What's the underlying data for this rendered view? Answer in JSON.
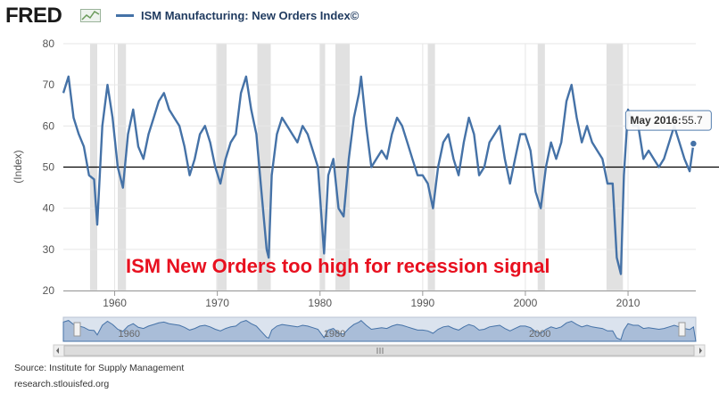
{
  "header": {
    "logo": "FRED",
    "logo_icon": "fred-chart-icon",
    "legend_label": "ISM Manufacturing: New Orders Index©",
    "legend_color": "#4572A7"
  },
  "chart_data": {
    "type": "line",
    "title": "ISM Manufacturing: New Orders Index©",
    "xlabel": "",
    "ylabel": "(Index)",
    "xlim": [
      1955.0,
      2016.6
    ],
    "ylim": [
      20,
      80
    ],
    "yticks": [
      20,
      30,
      40,
      50,
      60,
      70,
      80
    ],
    "xticks": [
      1960,
      1970,
      1980,
      1990,
      2000,
      2010
    ],
    "xtick_labels": [
      "1960",
      "1970",
      "1980",
      "1990",
      "2000",
      "2010"
    ],
    "grid": true,
    "reference_line": 50,
    "recessions": [
      [
        1957.6,
        1958.3
      ],
      [
        1960.3,
        1961.1
      ],
      [
        1969.9,
        1970.9
      ],
      [
        1973.9,
        1975.2
      ],
      [
        1980.0,
        1980.5
      ],
      [
        1981.5,
        1982.9
      ],
      [
        1990.5,
        1991.2
      ],
      [
        2001.2,
        2001.9
      ],
      [
        2007.9,
        2009.5
      ]
    ],
    "series": [
      {
        "name": "ISM Manufacturing: New Orders Index©",
        "color": "#4572A7",
        "x": [
          1955.0,
          1955.5,
          1956.0,
          1956.5,
          1957.0,
          1957.5,
          1958.0,
          1958.3,
          1958.8,
          1959.3,
          1959.8,
          1960.3,
          1960.8,
          1961.3,
          1961.8,
          1962.3,
          1962.8,
          1963.3,
          1963.8,
          1964.3,
          1964.8,
          1965.3,
          1965.8,
          1966.3,
          1966.8,
          1967.3,
          1967.8,
          1968.3,
          1968.8,
          1969.3,
          1969.8,
          1970.3,
          1970.8,
          1971.3,
          1971.8,
          1972.3,
          1972.8,
          1973.3,
          1973.8,
          1974.3,
          1974.8,
          1975.0,
          1975.3,
          1975.8,
          1976.3,
          1976.8,
          1977.3,
          1977.8,
          1978.3,
          1978.8,
          1979.3,
          1979.8,
          1980.2,
          1980.4,
          1980.8,
          1981.3,
          1981.8,
          1982.3,
          1982.8,
          1983.3,
          1983.8,
          1984.0,
          1984.5,
          1985.0,
          1985.5,
          1986.0,
          1986.5,
          1987.0,
          1987.5,
          1988.0,
          1988.5,
          1989.0,
          1989.5,
          1990.0,
          1990.5,
          1991.0,
          1991.5,
          1992.0,
          1992.5,
          1993.0,
          1993.5,
          1994.0,
          1994.5,
          1995.0,
          1995.5,
          1996.0,
          1996.5,
          1997.0,
          1997.5,
          1998.0,
          1998.5,
          1999.0,
          1999.5,
          2000.0,
          2000.5,
          2001.0,
          2001.5,
          2002.0,
          2002.5,
          2003.0,
          2003.5,
          2004.0,
          2004.5,
          2005.0,
          2005.5,
          2006.0,
          2006.5,
          2007.0,
          2007.5,
          2008.0,
          2008.5,
          2008.9,
          2009.3,
          2009.6,
          2010.0,
          2010.5,
          2011.0,
          2011.5,
          2012.0,
          2012.5,
          2013.0,
          2013.5,
          2014.0,
          2014.5,
          2015.0,
          2015.5,
          2016.0,
          2016.37
        ],
        "values": [
          68,
          72,
          62,
          58,
          55,
          48,
          47,
          36,
          60,
          70,
          62,
          50,
          45,
          58,
          64,
          55,
          52,
          58,
          62,
          66,
          68,
          64,
          62,
          60,
          55,
          48,
          52,
          58,
          60,
          56,
          50,
          46,
          52,
          56,
          58,
          68,
          72,
          64,
          58,
          44,
          30,
          28,
          48,
          58,
          62,
          60,
          58,
          56,
          60,
          58,
          54,
          50,
          36,
          29,
          48,
          52,
          40,
          38,
          52,
          62,
          68,
          72,
          60,
          50,
          52,
          54,
          52,
          58,
          62,
          60,
          56,
          52,
          48,
          48,
          46,
          40,
          50,
          56,
          58,
          52,
          48,
          56,
          62,
          58,
          48,
          50,
          56,
          58,
          60,
          52,
          46,
          52,
          58,
          58,
          54,
          44,
          40,
          50,
          56,
          52,
          56,
          66,
          70,
          62,
          56,
          60,
          56,
          54,
          52,
          46,
          46,
          28,
          24,
          48,
          64,
          60,
          60,
          52,
          54,
          52,
          50,
          52,
          56,
          60,
          56,
          52,
          49,
          55.7
        ]
      }
    ],
    "annotations": [
      {
        "text": "ISM New Orders too high for recession signal",
        "color": "#e8101f"
      }
    ],
    "tooltip": {
      "label": "May 2016:",
      "value": "55.7",
      "x": 2016.37,
      "y": 55.7
    },
    "navigator": {
      "labels": [
        "1960",
        "1980",
        "2000"
      ]
    }
  },
  "footer": {
    "source": "Source: Institute for Supply Management",
    "url": "research.stlouisfed.org"
  }
}
